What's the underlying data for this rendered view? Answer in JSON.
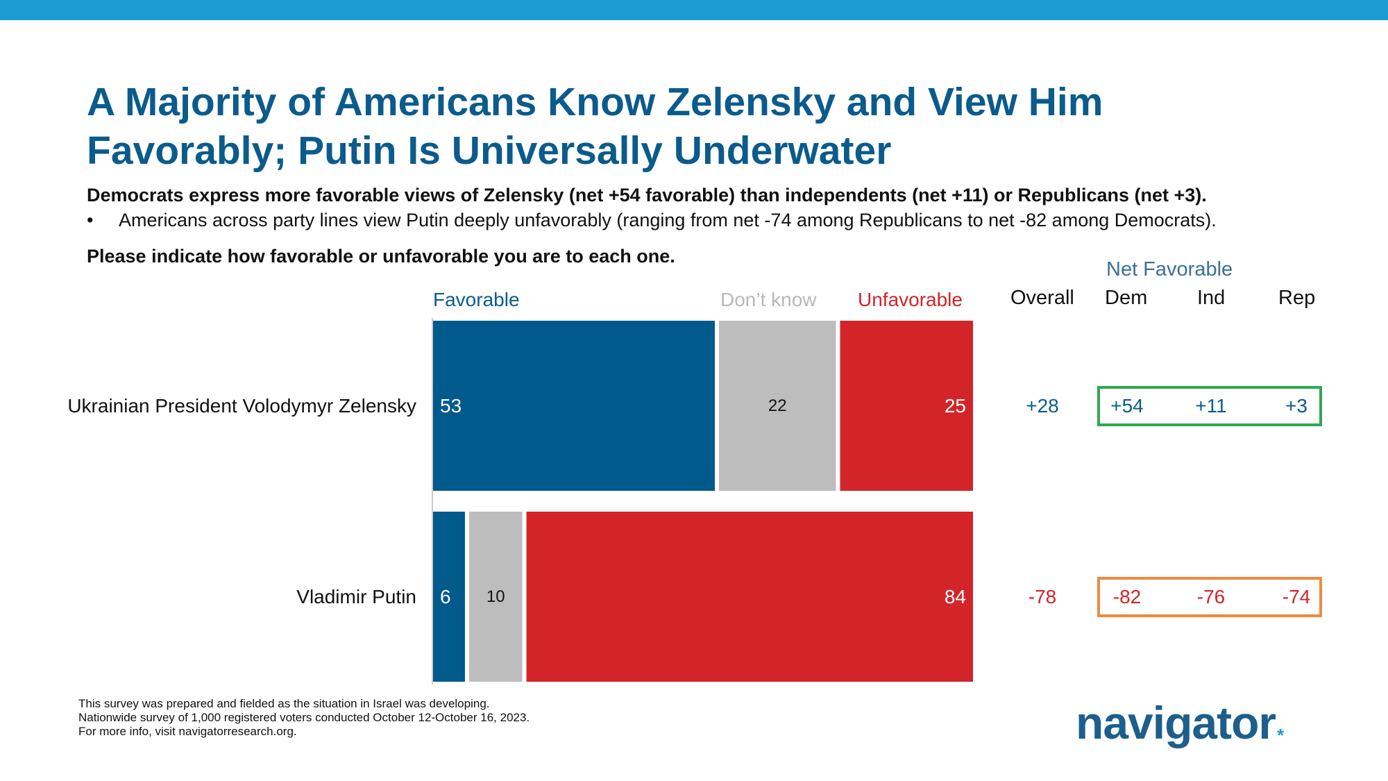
{
  "title": "A Majority of Americans Know Zelensky and View Him Favorably; Putin Is Universally Underwater",
  "subtitle": "Democrats express more favorable views of Zelensky (net +54 favorable) than independents (net +11) or Republicans (net +3).",
  "bullet": "Americans across party lines view Putin deeply unfavorably (ranging from net -74 among Republicans to net -82 among Democrats).",
  "bullet_symbol": "•",
  "question": "Please indicate how favorable or unfavorable you are to each one.",
  "legend": {
    "favorable": "Favorable",
    "dont_know": "Don’t know",
    "unfavorable": "Unfavorable"
  },
  "columns": {
    "overall": "Overall",
    "net_favorable": "Net Favorable",
    "dem": "Dem",
    "ind": "Ind",
    "rep": "Rep"
  },
  "colors": {
    "favorable": "#005a8b",
    "dont_know": "#bdbdbd",
    "unfavorable": "#d3242a",
    "positive_text": "#0b5b8c",
    "negative_text": "#d0242b",
    "box_zelensky": "#2fa84f",
    "box_putin": "#ef8a3c",
    "top_bar": "#1a9bd2"
  },
  "chart_data": {
    "type": "bar",
    "orientation": "horizontal",
    "stacked": true,
    "xlim": [
      0,
      100
    ],
    "categories": [
      "Ukrainian President Volodymyr Zelensky",
      "Vladimir Putin"
    ],
    "series": [
      {
        "name": "Favorable",
        "values": [
          53,
          6
        ]
      },
      {
        "name": "Don’t know",
        "values": [
          22,
          10
        ]
      },
      {
        "name": "Unfavorable",
        "values": [
          25,
          84
        ]
      }
    ],
    "net": {
      "overall": [
        "+28",
        "-78"
      ],
      "dem": [
        "+54",
        "-82"
      ],
      "ind": [
        "+11",
        "-76"
      ],
      "rep": [
        "+3",
        "-74"
      ]
    }
  },
  "footnotes": [
    "This survey was prepared and fielded as the situation in Israel was developing.",
    "Nationwide survey of 1,000 registered voters conducted October 12-October 16, 2023.",
    "For more info, visit navigatorresearch.org."
  ],
  "logo": {
    "text": "navigator",
    "mark": "*"
  }
}
